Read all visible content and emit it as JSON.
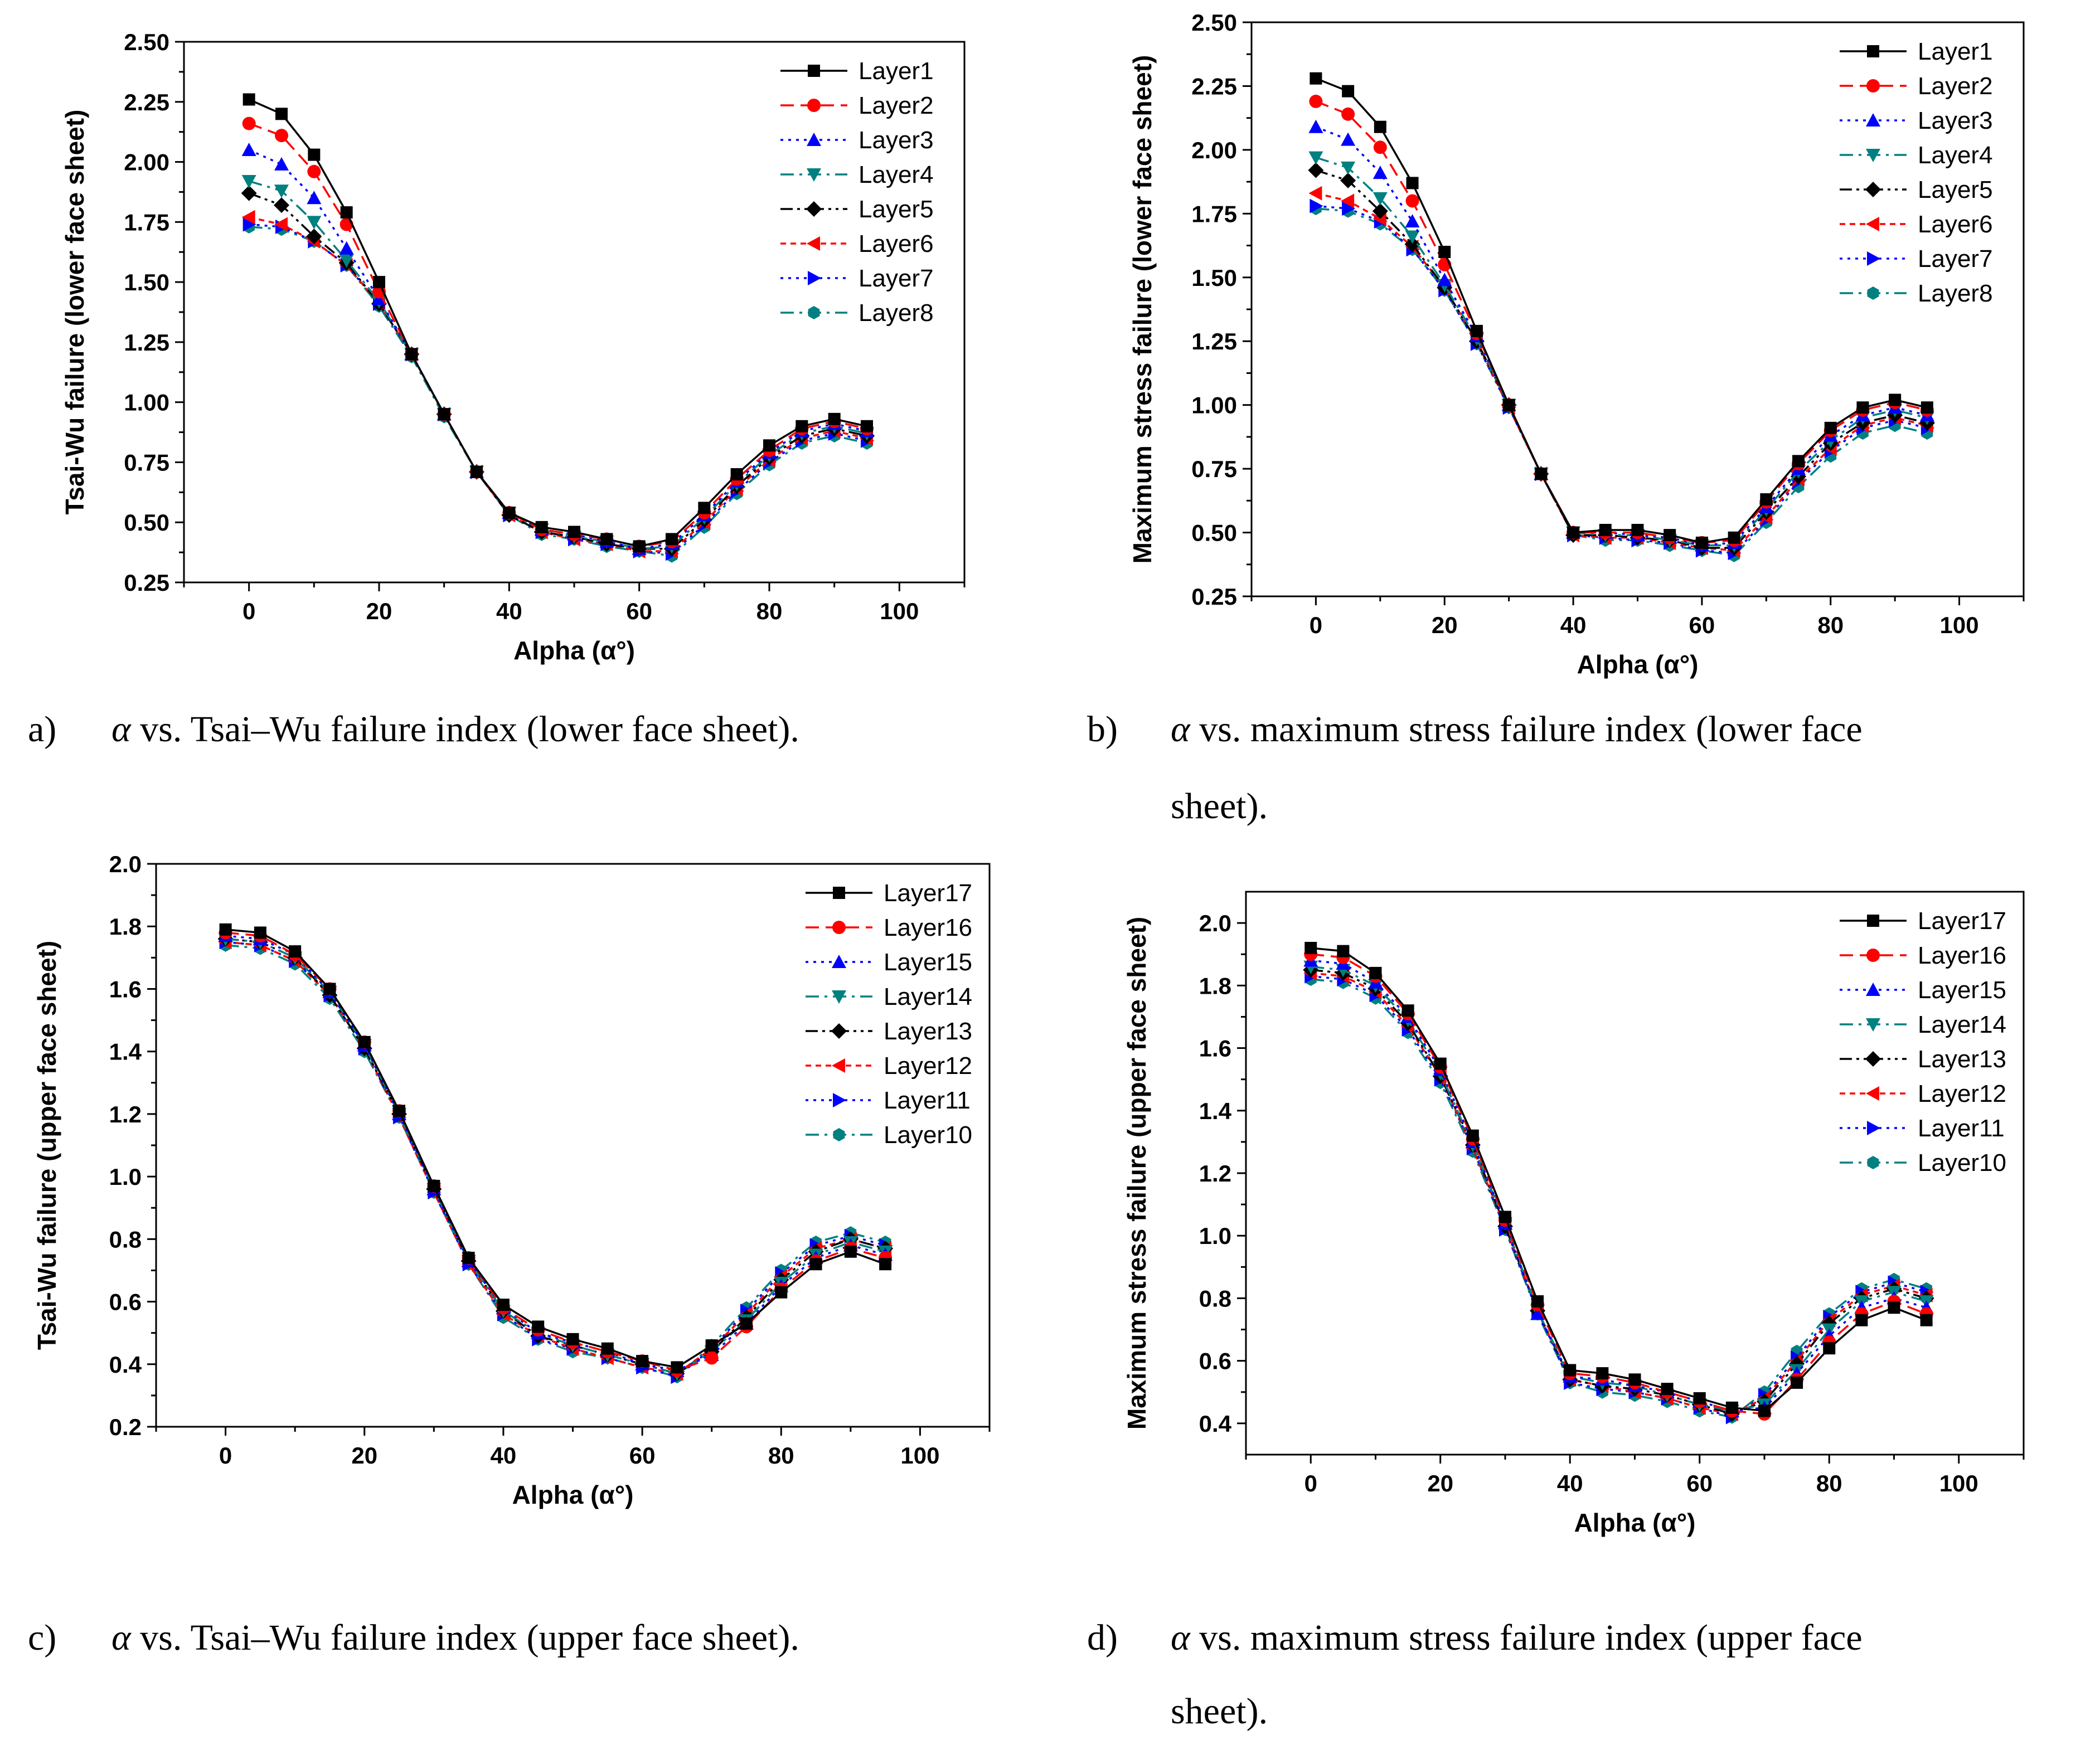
{
  "chart_data": [
    {
      "id": "a",
      "type": "line",
      "xlabel": "Alpha (α°)",
      "ylabel": "Tsai-Wu failure (lower face sheet)",
      "xlim": [
        -10,
        110
      ],
      "ylim": [
        0.25,
        2.5
      ],
      "xticks": [
        0,
        20,
        40,
        60,
        80,
        100
      ],
      "xtick_labels": [
        "0",
        "20",
        "40",
        "60",
        "80",
        "100"
      ],
      "yticks": [
        0.25,
        0.5,
        0.75,
        1.0,
        1.25,
        1.5,
        1.75,
        2.0,
        2.25,
        2.5
      ],
      "ytick_labels": [
        "0.25",
        "0.50",
        "0.75",
        "1.00",
        "1.25",
        "1.50",
        "1.75",
        "2.00",
        "2.25",
        "2.50"
      ],
      "legend_position": "top-right",
      "x": [
        0,
        5,
        10,
        15,
        20,
        25,
        30,
        35,
        40,
        45,
        50,
        55,
        60,
        65,
        70,
        75,
        80,
        85,
        90,
        95
      ],
      "series": [
        {
          "name": "Layer1",
          "values": [
            2.26,
            2.2,
            2.03,
            1.79,
            1.5,
            1.2,
            0.95,
            0.71,
            0.54,
            0.48,
            0.46,
            0.43,
            0.4,
            0.43,
            0.56,
            0.7,
            0.82,
            0.9,
            0.93,
            0.9
          ]
        },
        {
          "name": "Layer2",
          "values": [
            2.16,
            2.11,
            1.96,
            1.74,
            1.46,
            1.2,
            0.95,
            0.71,
            0.54,
            0.47,
            0.45,
            0.43,
            0.4,
            0.42,
            0.54,
            0.68,
            0.8,
            0.89,
            0.92,
            0.89
          ]
        },
        {
          "name": "Layer3",
          "values": [
            2.05,
            1.99,
            1.85,
            1.64,
            1.43,
            1.2,
            0.95,
            0.71,
            0.54,
            0.47,
            0.45,
            0.42,
            0.39,
            0.41,
            0.53,
            0.67,
            0.79,
            0.88,
            0.91,
            0.88
          ]
        },
        {
          "name": "Layer4",
          "values": [
            1.92,
            1.88,
            1.75,
            1.59,
            1.42,
            1.2,
            0.95,
            0.71,
            0.54,
            0.47,
            0.44,
            0.42,
            0.39,
            0.4,
            0.52,
            0.66,
            0.78,
            0.87,
            0.9,
            0.87
          ]
        },
        {
          "name": "Layer5",
          "values": [
            1.87,
            1.82,
            1.69,
            1.58,
            1.41,
            1.2,
            0.95,
            0.71,
            0.53,
            0.46,
            0.44,
            0.41,
            0.39,
            0.39,
            0.51,
            0.65,
            0.77,
            0.86,
            0.89,
            0.86
          ]
        },
        {
          "name": "Layer6",
          "values": [
            1.77,
            1.74,
            1.67,
            1.57,
            1.41,
            1.2,
            0.95,
            0.71,
            0.53,
            0.46,
            0.43,
            0.41,
            0.38,
            0.38,
            0.5,
            0.64,
            0.76,
            0.85,
            0.88,
            0.85
          ]
        },
        {
          "name": "Layer7",
          "values": [
            1.74,
            1.73,
            1.67,
            1.57,
            1.41,
            1.2,
            0.95,
            0.71,
            0.53,
            0.46,
            0.43,
            0.41,
            0.38,
            0.37,
            0.49,
            0.63,
            0.75,
            0.84,
            0.87,
            0.84
          ]
        },
        {
          "name": "Layer8",
          "values": [
            1.73,
            1.72,
            1.67,
            1.57,
            1.4,
            1.19,
            0.94,
            0.71,
            0.53,
            0.45,
            0.43,
            0.4,
            0.38,
            0.36,
            0.48,
            0.62,
            0.74,
            0.83,
            0.86,
            0.83
          ]
        }
      ]
    },
    {
      "id": "b",
      "type": "line",
      "xlabel": "Alpha (α°)",
      "ylabel": "Maximum stress failure (lower face sheet)",
      "xlim": [
        -10,
        110
      ],
      "ylim": [
        0.25,
        2.5
      ],
      "xticks": [
        0,
        20,
        40,
        60,
        80,
        100
      ],
      "xtick_labels": [
        "0",
        "20",
        "40",
        "60",
        "80",
        "100"
      ],
      "yticks": [
        0.25,
        0.5,
        0.75,
        1.0,
        1.25,
        1.5,
        1.75,
        2.0,
        2.25,
        2.5
      ],
      "ytick_labels": [
        "0.25",
        "0.50",
        "0.75",
        "1.00",
        "1.25",
        "1.50",
        "1.75",
        "2.00",
        "2.25",
        "2.50"
      ],
      "legend_position": "top-right",
      "x": [
        0,
        5,
        10,
        15,
        20,
        25,
        30,
        35,
        40,
        45,
        50,
        55,
        60,
        65,
        70,
        75,
        80,
        85,
        90,
        95
      ],
      "series": [
        {
          "name": "Layer1",
          "values": [
            2.28,
            2.23,
            2.09,
            1.87,
            1.6,
            1.29,
            1.0,
            0.73,
            0.5,
            0.51,
            0.51,
            0.49,
            0.46,
            0.48,
            0.63,
            0.78,
            0.91,
            0.99,
            1.02,
            0.99
          ]
        },
        {
          "name": "Layer2",
          "values": [
            2.19,
            2.14,
            2.01,
            1.8,
            1.55,
            1.28,
            1.0,
            0.73,
            0.5,
            0.5,
            0.5,
            0.48,
            0.46,
            0.47,
            0.62,
            0.77,
            0.9,
            0.98,
            1.01,
            0.98
          ]
        },
        {
          "name": "Layer3",
          "values": [
            2.09,
            2.04,
            1.91,
            1.72,
            1.49,
            1.27,
            1.0,
            0.73,
            0.5,
            0.5,
            0.49,
            0.48,
            0.45,
            0.46,
            0.6,
            0.75,
            0.88,
            0.96,
            0.99,
            0.96
          ]
        },
        {
          "name": "Layer4",
          "values": [
            1.97,
            1.93,
            1.81,
            1.66,
            1.47,
            1.26,
            1.0,
            0.73,
            0.5,
            0.49,
            0.49,
            0.47,
            0.45,
            0.45,
            0.59,
            0.74,
            0.86,
            0.95,
            0.98,
            0.95
          ]
        },
        {
          "name": "Layer5",
          "values": [
            1.92,
            1.88,
            1.76,
            1.63,
            1.46,
            1.25,
            1.0,
            0.73,
            0.49,
            0.49,
            0.48,
            0.47,
            0.44,
            0.44,
            0.58,
            0.72,
            0.85,
            0.93,
            0.96,
            0.93
          ]
        },
        {
          "name": "Layer6",
          "values": [
            1.83,
            1.8,
            1.73,
            1.62,
            1.46,
            1.25,
            0.99,
            0.73,
            0.49,
            0.48,
            0.48,
            0.46,
            0.44,
            0.43,
            0.56,
            0.71,
            0.83,
            0.92,
            0.95,
            0.92
          ]
        },
        {
          "name": "Layer7",
          "values": [
            1.78,
            1.77,
            1.72,
            1.61,
            1.45,
            1.24,
            0.99,
            0.73,
            0.49,
            0.48,
            0.47,
            0.46,
            0.43,
            0.42,
            0.55,
            0.7,
            0.82,
            0.91,
            0.94,
            0.91
          ]
        },
        {
          "name": "Layer8",
          "values": [
            1.77,
            1.76,
            1.71,
            1.61,
            1.45,
            1.24,
            0.99,
            0.73,
            0.49,
            0.47,
            0.47,
            0.45,
            0.43,
            0.41,
            0.54,
            0.68,
            0.8,
            0.89,
            0.92,
            0.89
          ]
        }
      ]
    },
    {
      "id": "c",
      "type": "line",
      "xlabel": "Alpha (α°)",
      "ylabel": "Tsai-Wu failure (upper face sheet)",
      "xlim": [
        -10,
        110
      ],
      "ylim": [
        0.2,
        2.0
      ],
      "xticks": [
        0,
        20,
        40,
        60,
        80,
        100
      ],
      "xtick_labels": [
        "0",
        "20",
        "40",
        "60",
        "80",
        "100"
      ],
      "yticks": [
        0.2,
        0.4,
        0.6,
        0.8,
        1.0,
        1.2,
        1.4,
        1.6,
        1.8,
        2.0
      ],
      "ytick_labels": [
        "0.2",
        "0.4",
        "0.6",
        "0.8",
        "1.0",
        "1.2",
        "1.4",
        "1.6",
        "1.8",
        "2.0"
      ],
      "legend_position": "top-right",
      "x": [
        0,
        5,
        10,
        15,
        20,
        25,
        30,
        35,
        40,
        45,
        50,
        55,
        60,
        65,
        70,
        75,
        80,
        85,
        90,
        95
      ],
      "series": [
        {
          "name": "Layer17",
          "values": [
            1.79,
            1.78,
            1.72,
            1.6,
            1.43,
            1.21,
            0.97,
            0.74,
            0.59,
            0.52,
            0.48,
            0.45,
            0.41,
            0.39,
            0.46,
            0.53,
            0.63,
            0.72,
            0.76,
            0.72
          ]
        },
        {
          "name": "Layer16",
          "values": [
            1.78,
            1.77,
            1.71,
            1.6,
            1.43,
            1.21,
            0.97,
            0.74,
            0.58,
            0.51,
            0.47,
            0.44,
            0.41,
            0.38,
            0.42,
            0.52,
            0.64,
            0.73,
            0.77,
            0.74
          ]
        },
        {
          "name": "Layer15",
          "values": [
            1.77,
            1.76,
            1.71,
            1.59,
            1.42,
            1.2,
            0.96,
            0.73,
            0.58,
            0.5,
            0.47,
            0.44,
            0.4,
            0.38,
            0.43,
            0.53,
            0.65,
            0.74,
            0.78,
            0.75
          ]
        },
        {
          "name": "Layer14",
          "values": [
            1.76,
            1.75,
            1.7,
            1.59,
            1.42,
            1.2,
            0.96,
            0.73,
            0.57,
            0.5,
            0.46,
            0.43,
            0.4,
            0.37,
            0.44,
            0.54,
            0.66,
            0.75,
            0.79,
            0.76
          ]
        },
        {
          "name": "Layer13",
          "values": [
            1.76,
            1.75,
            1.7,
            1.58,
            1.41,
            1.2,
            0.96,
            0.73,
            0.57,
            0.49,
            0.46,
            0.43,
            0.4,
            0.37,
            0.44,
            0.55,
            0.67,
            0.76,
            0.8,
            0.77
          ]
        },
        {
          "name": "Layer12",
          "values": [
            1.75,
            1.74,
            1.69,
            1.58,
            1.41,
            1.19,
            0.95,
            0.72,
            0.56,
            0.49,
            0.45,
            0.42,
            0.39,
            0.37,
            0.45,
            0.56,
            0.68,
            0.77,
            0.8,
            0.77
          ]
        },
        {
          "name": "Layer11",
          "values": [
            1.75,
            1.74,
            1.69,
            1.58,
            1.41,
            1.19,
            0.95,
            0.72,
            0.56,
            0.48,
            0.45,
            0.42,
            0.39,
            0.36,
            0.45,
            0.57,
            0.69,
            0.78,
            0.81,
            0.78
          ]
        },
        {
          "name": "Layer10",
          "values": [
            1.74,
            1.73,
            1.68,
            1.57,
            1.4,
            1.19,
            0.95,
            0.72,
            0.55,
            0.48,
            0.44,
            0.42,
            0.39,
            0.36,
            0.46,
            0.58,
            0.7,
            0.79,
            0.82,
            0.79
          ]
        }
      ]
    },
    {
      "id": "d",
      "type": "line",
      "xlabel": "Alpha (α°)",
      "ylabel": "Maximum stress failure (upper face sheet)",
      "xlim": [
        -10,
        110
      ],
      "ylim": [
        0.3,
        2.1
      ],
      "xticks": [
        0,
        20,
        40,
        60,
        80,
        100
      ],
      "xtick_labels": [
        "0",
        "20",
        "40",
        "60",
        "80",
        "100"
      ],
      "yticks": [
        0.4,
        0.6,
        0.8,
        1.0,
        1.2,
        1.4,
        1.6,
        1.8,
        2.0
      ],
      "ytick_labels": [
        "0.4",
        "0.6",
        "0.8",
        "1.0",
        "1.2",
        "1.4",
        "1.6",
        "1.8",
        "2.0"
      ],
      "legend_position": "top-right",
      "x": [
        0,
        5,
        10,
        15,
        20,
        25,
        30,
        35,
        40,
        45,
        50,
        55,
        60,
        65,
        70,
        75,
        80,
        85,
        90,
        95
      ],
      "series": [
        {
          "name": "Layer17",
          "values": [
            1.92,
            1.91,
            1.84,
            1.72,
            1.55,
            1.32,
            1.06,
            0.79,
            0.57,
            0.56,
            0.54,
            0.51,
            0.48,
            0.45,
            0.44,
            0.53,
            0.64,
            0.73,
            0.77,
            0.73
          ]
        },
        {
          "name": "Layer16",
          "values": [
            1.9,
            1.89,
            1.83,
            1.71,
            1.54,
            1.31,
            1.05,
            0.78,
            0.56,
            0.55,
            0.53,
            0.5,
            0.47,
            0.44,
            0.43,
            0.54,
            0.66,
            0.75,
            0.79,
            0.75
          ]
        },
        {
          "name": "Layer15",
          "values": [
            1.88,
            1.87,
            1.81,
            1.7,
            1.53,
            1.3,
            1.04,
            0.75,
            0.55,
            0.54,
            0.52,
            0.5,
            0.47,
            0.44,
            0.45,
            0.56,
            0.68,
            0.77,
            0.8,
            0.77
          ]
        },
        {
          "name": "Layer14",
          "values": [
            1.86,
            1.85,
            1.8,
            1.69,
            1.52,
            1.29,
            1.04,
            0.76,
            0.55,
            0.53,
            0.52,
            0.49,
            0.46,
            0.44,
            0.46,
            0.57,
            0.7,
            0.79,
            0.82,
            0.79
          ]
        },
        {
          "name": "Layer13",
          "values": [
            1.85,
            1.84,
            1.79,
            1.68,
            1.51,
            1.29,
            1.03,
            0.76,
            0.54,
            0.52,
            0.51,
            0.49,
            0.46,
            0.43,
            0.47,
            0.59,
            0.72,
            0.8,
            0.83,
            0.8
          ]
        },
        {
          "name": "Layer12",
          "values": [
            1.84,
            1.83,
            1.78,
            1.67,
            1.51,
            1.28,
            1.03,
            0.76,
            0.54,
            0.52,
            0.5,
            0.48,
            0.45,
            0.43,
            0.48,
            0.6,
            0.73,
            0.81,
            0.84,
            0.81
          ]
        },
        {
          "name": "Layer11",
          "values": [
            1.83,
            1.82,
            1.77,
            1.66,
            1.5,
            1.28,
            1.02,
            0.76,
            0.53,
            0.51,
            0.5,
            0.48,
            0.45,
            0.42,
            0.49,
            0.61,
            0.74,
            0.82,
            0.85,
            0.82
          ]
        },
        {
          "name": "Layer10",
          "values": [
            1.82,
            1.81,
            1.76,
            1.65,
            1.49,
            1.27,
            1.02,
            0.75,
            0.53,
            0.5,
            0.49,
            0.47,
            0.44,
            0.42,
            0.5,
            0.63,
            0.75,
            0.83,
            0.86,
            0.83
          ]
        }
      ]
    }
  ],
  "series_styles": [
    {
      "color": "#000000",
      "marker": "square",
      "dash": "none"
    },
    {
      "color": "#ff0000",
      "marker": "circle",
      "dash": "dash"
    },
    {
      "color": "#0000ff",
      "marker": "triangle-up",
      "dash": "dot"
    },
    {
      "color": "#008080",
      "marker": "triangle-down",
      "dash": "dashdot"
    },
    {
      "color": "#000000",
      "marker": "diamond",
      "dash": "dashdotdot"
    },
    {
      "color": "#ff0000",
      "marker": "triangle-left",
      "dash": "shortdot"
    },
    {
      "color": "#0000ff",
      "marker": "triangle-right",
      "dash": "dot"
    },
    {
      "color": "#008080",
      "marker": "hexagon",
      "dash": "dashdot"
    }
  ],
  "captions": [
    {
      "letter": "a)",
      "alpha": "α",
      "rest": " vs. Tsai–Wu failure index (lower face sheet)."
    },
    {
      "letter": "b)",
      "alpha": "α",
      "rest": " vs. maximum stress failure index (lower face",
      "cont": "sheet)."
    },
    {
      "letter": "c)",
      "alpha": "α",
      "rest": " vs. Tsai–Wu failure index (upper face sheet)."
    },
    {
      "letter": "d)",
      "alpha": "α",
      "rest": " vs. maximum stress failure index (upper face",
      "cont": "sheet)."
    }
  ]
}
